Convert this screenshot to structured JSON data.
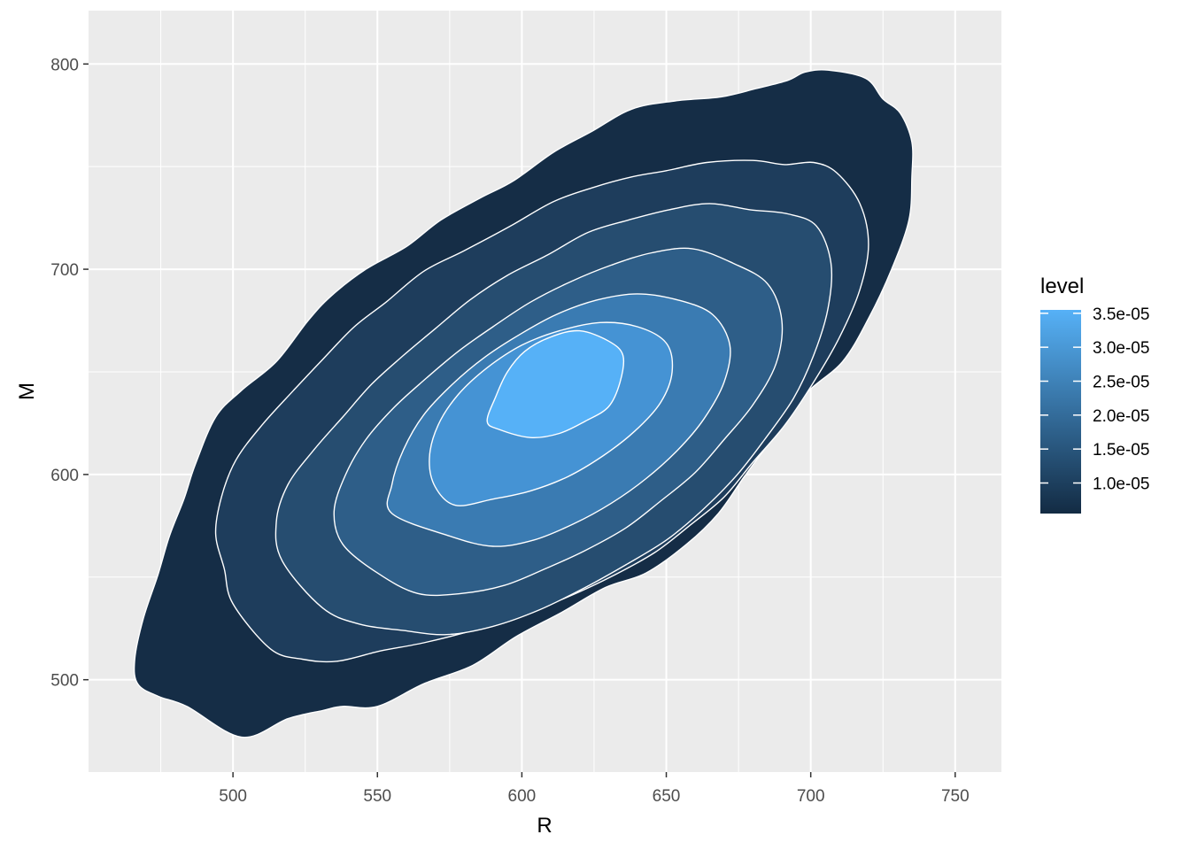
{
  "chart_data": {
    "type": "density_2d_filled",
    "xlabel": "R",
    "ylabel": "M",
    "xlim": [
      450,
      766
    ],
    "ylim": [
      455,
      826
    ],
    "x_ticks": [
      500,
      550,
      600,
      650,
      700,
      750
    ],
    "y_ticks": [
      500,
      600,
      700,
      800
    ],
    "x_tick_labels": [
      "500",
      "550",
      "600",
      "650",
      "700",
      "750"
    ],
    "y_tick_labels": [
      "500",
      "600",
      "700",
      "800"
    ],
    "grid": true,
    "panel_background": "#EBEBEB",
    "contour_line_color": "#FFFFFF",
    "legend": {
      "title": "level",
      "position": "right",
      "labels": [
        "3.5e-05",
        "3.0e-05",
        "2.5e-05",
        "2.0e-05",
        "1.5e-05",
        "1.0e-05"
      ],
      "values": [
        3.5e-05,
        3e-05,
        2.5e-05,
        2e-05,
        1.5e-05,
        1e-05
      ],
      "min": 5.5e-06,
      "max": 3.55e-05,
      "color_low": "#132B43",
      "color_high": "#56B1F7"
    },
    "contour_levels": [
      {
        "name": "level-1",
        "color": "#152D46",
        "points": [
          [
            484,
            487
          ],
          [
            503,
            472
          ],
          [
            519,
            481
          ],
          [
            531,
            485
          ],
          [
            538,
            487
          ],
          [
            550,
            487
          ],
          [
            566,
            498
          ],
          [
            583,
            507
          ],
          [
            598,
            521
          ],
          [
            614,
            533
          ],
          [
            629,
            545
          ],
          [
            643,
            552
          ],
          [
            657,
            566
          ],
          [
            668,
            581
          ],
          [
            677,
            599
          ],
          [
            687,
            618
          ],
          [
            698,
            639
          ],
          [
            711,
            655
          ],
          [
            720,
            676
          ],
          [
            728,
            700
          ],
          [
            734,
            724
          ],
          [
            735,
            745
          ],
          [
            735,
            762
          ],
          [
            731,
            776
          ],
          [
            725,
            783
          ],
          [
            719,
            793
          ],
          [
            706,
            797
          ],
          [
            698,
            796
          ],
          [
            692,
            792
          ],
          [
            681,
            788
          ],
          [
            669,
            784
          ],
          [
            653,
            782
          ],
          [
            638,
            778
          ],
          [
            624,
            767
          ],
          [
            611,
            757
          ],
          [
            597,
            743
          ],
          [
            586,
            735
          ],
          [
            572,
            724
          ],
          [
            560,
            711
          ],
          [
            546,
            700
          ],
          [
            534,
            687
          ],
          [
            526,
            675
          ],
          [
            515,
            655
          ],
          [
            503,
            641
          ],
          [
            494,
            628
          ],
          [
            487,
            605
          ],
          [
            483,
            588
          ],
          [
            478,
            570
          ],
          [
            474,
            551
          ],
          [
            469,
            530
          ],
          [
            466,
            510
          ],
          [
            467,
            498
          ],
          [
            474,
            492
          ]
        ]
      },
      {
        "name": "level-2",
        "color": "#1E3D5C",
        "points": [
          [
            513,
            515
          ],
          [
            524,
            510
          ],
          [
            536,
            509
          ],
          [
            551,
            514
          ],
          [
            566,
            518
          ],
          [
            583,
            524
          ],
          [
            599,
            531
          ],
          [
            617,
            541
          ],
          [
            632,
            551
          ],
          [
            646,
            562
          ],
          [
            658,
            575
          ],
          [
            670,
            589
          ],
          [
            680,
            606
          ],
          [
            691,
            624
          ],
          [
            701,
            645
          ],
          [
            710,
            667
          ],
          [
            717,
            690
          ],
          [
            720,
            712
          ],
          [
            717,
            732
          ],
          [
            709,
            747
          ],
          [
            701,
            752
          ],
          [
            691,
            751
          ],
          [
            680,
            753
          ],
          [
            664,
            752
          ],
          [
            650,
            748
          ],
          [
            638,
            745
          ],
          [
            625,
            740
          ],
          [
            611,
            733
          ],
          [
            596,
            721
          ],
          [
            580,
            709
          ],
          [
            566,
            699
          ],
          [
            553,
            684
          ],
          [
            542,
            672
          ],
          [
            531,
            656
          ],
          [
            521,
            641
          ],
          [
            510,
            624
          ],
          [
            501,
            607
          ],
          [
            496,
            589
          ],
          [
            494,
            571
          ],
          [
            497,
            554
          ],
          [
            500,
            537
          ]
        ]
      },
      {
        "name": "level-3",
        "color": "#264D70",
        "points": [
          [
            531,
            535
          ],
          [
            544,
            527
          ],
          [
            559,
            524
          ],
          [
            574,
            522
          ],
          [
            590,
            526
          ],
          [
            606,
            534
          ],
          [
            622,
            545
          ],
          [
            636,
            556
          ],
          [
            650,
            568
          ],
          [
            662,
            582
          ],
          [
            674,
            599
          ],
          [
            684,
            617
          ],
          [
            694,
            637
          ],
          [
            701,
            658
          ],
          [
            706,
            681
          ],
          [
            707,
            703
          ],
          [
            702,
            721
          ],
          [
            692,
            727
          ],
          [
            679,
            729
          ],
          [
            665,
            732
          ],
          [
            651,
            729
          ],
          [
            637,
            724
          ],
          [
            623,
            718
          ],
          [
            609,
            707
          ],
          [
            595,
            697
          ],
          [
            582,
            685
          ],
          [
            570,
            671
          ],
          [
            559,
            658
          ],
          [
            548,
            644
          ],
          [
            538,
            628
          ],
          [
            528,
            612
          ],
          [
            519,
            595
          ],
          [
            515,
            577
          ],
          [
            517,
            558
          ]
        ]
      },
      {
        "name": "level-4",
        "color": "#2E5E88",
        "points": [
          [
            550,
            552
          ],
          [
            564,
            542
          ],
          [
            579,
            542
          ],
          [
            594,
            546
          ],
          [
            608,
            554
          ],
          [
            622,
            563
          ],
          [
            636,
            574
          ],
          [
            648,
            587
          ],
          [
            660,
            601
          ],
          [
            670,
            617
          ],
          [
            680,
            634
          ],
          [
            688,
            654
          ],
          [
            690,
            675
          ],
          [
            685,
            693
          ],
          [
            673,
            703
          ],
          [
            659,
            710
          ],
          [
            645,
            708
          ],
          [
            631,
            702
          ],
          [
            617,
            694
          ],
          [
            603,
            684
          ],
          [
            590,
            672
          ],
          [
            578,
            660
          ],
          [
            567,
            647
          ],
          [
            556,
            633
          ],
          [
            546,
            617
          ],
          [
            539,
            600
          ],
          [
            535,
            582
          ],
          [
            538,
            566
          ]
        ]
      },
      {
        "name": "level-5",
        "color": "#3A7BB2",
        "points": [
          [
            575,
            570
          ],
          [
            590,
            565
          ],
          [
            604,
            568
          ],
          [
            618,
            576
          ],
          [
            631,
            586
          ],
          [
            643,
            598
          ],
          [
            654,
            612
          ],
          [
            663,
            627
          ],
          [
            670,
            645
          ],
          [
            672,
            663
          ],
          [
            666,
            678
          ],
          [
            654,
            685
          ],
          [
            640,
            688
          ],
          [
            626,
            685
          ],
          [
            612,
            678
          ],
          [
            599,
            668
          ],
          [
            587,
            657
          ],
          [
            576,
            644
          ],
          [
            566,
            629
          ],
          [
            559,
            612
          ],
          [
            555,
            595
          ],
          [
            555,
            581
          ]
        ]
      },
      {
        "name": "level-6",
        "color": "#4593D4",
        "points": [
          [
            577,
            585
          ],
          [
            590,
            588
          ],
          [
            603,
            592
          ],
          [
            616,
            599
          ],
          [
            628,
            609
          ],
          [
            639,
            621
          ],
          [
            648,
            635
          ],
          [
            652,
            650
          ],
          [
            650,
            664
          ],
          [
            640,
            672
          ],
          [
            627,
            674
          ],
          [
            613,
            670
          ],
          [
            600,
            663
          ],
          [
            588,
            652
          ],
          [
            578,
            639
          ],
          [
            571,
            624
          ],
          [
            568,
            608
          ],
          [
            570,
            594
          ]
        ]
      },
      {
        "name": "level-7",
        "color": "#56B1F7",
        "points": [
          [
            592,
            622
          ],
          [
            603,
            618
          ],
          [
            613,
            620
          ],
          [
            622,
            626
          ],
          [
            630,
            633
          ],
          [
            634,
            645
          ],
          [
            635,
            658
          ],
          [
            630,
            665
          ],
          [
            620,
            670
          ],
          [
            610,
            667
          ],
          [
            601,
            660
          ],
          [
            595,
            650
          ],
          [
            591,
            638
          ],
          [
            588,
            626
          ]
        ]
      }
    ]
  }
}
